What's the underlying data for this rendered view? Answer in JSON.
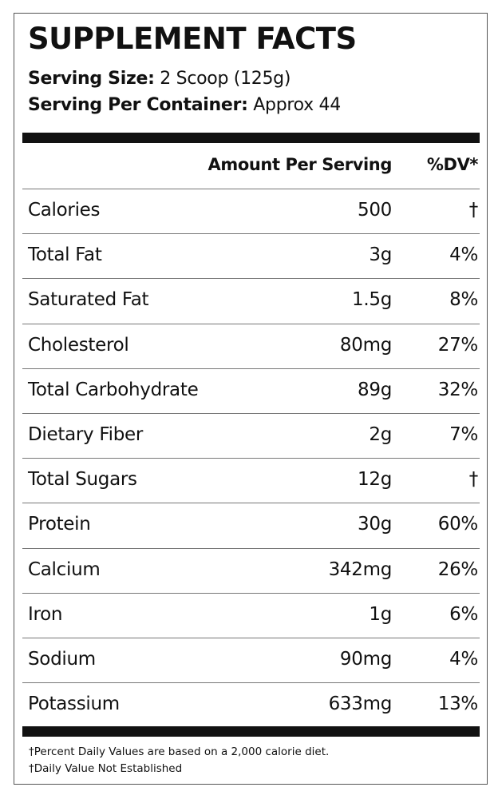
{
  "label": {
    "title": "SUPPLEMENT FACTS",
    "serving_size_label": "Serving Size:",
    "serving_size_value": "2 Scoop (125g)",
    "serving_container_label": "Serving Per Container:",
    "serving_container_value": "Approx 44"
  },
  "table": {
    "header_amount": "Amount Per Serving",
    "header_dv": "%DV*",
    "rows": [
      {
        "name": "Calories",
        "amount": "500",
        "dv": "†"
      },
      {
        "name": "Total Fat",
        "amount": "3g",
        "dv": "4%"
      },
      {
        "name": "Saturated Fat",
        "amount": "1.5g",
        "dv": "8%"
      },
      {
        "name": "Cholesterol",
        "amount": "80mg",
        "dv": "27%"
      },
      {
        "name": "Total Carbohydrate",
        "amount": "89g",
        "dv": "32%"
      },
      {
        "name": "Dietary Fiber",
        "amount": "2g",
        "dv": "7%"
      },
      {
        "name": "Total Sugars",
        "amount": "12g",
        "dv": "†"
      },
      {
        "name": "Protein",
        "amount": "30g",
        "dv": "60%"
      },
      {
        "name": "Calcium",
        "amount": "342mg",
        "dv": "26%"
      },
      {
        "name": "Iron",
        "amount": "1g",
        "dv": "6%"
      },
      {
        "name": "Sodium",
        "amount": "90mg",
        "dv": "4%"
      },
      {
        "name": "Potassium",
        "amount": "633mg",
        "dv": "13%"
      }
    ]
  },
  "footnotes": {
    "line1": "†Percent Daily Values are based on a 2,000 calorie diet.",
    "line2": "†Daily Value Not Established"
  }
}
